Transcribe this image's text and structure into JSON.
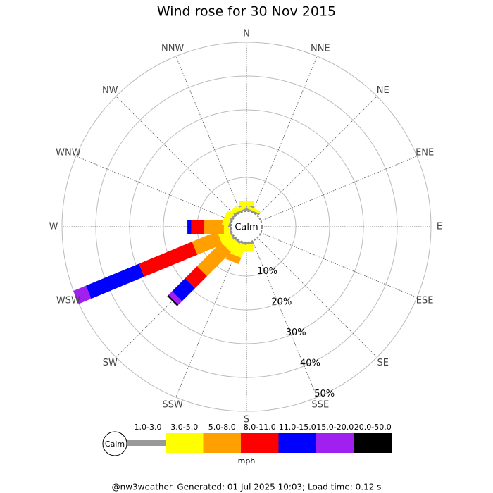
{
  "chart_data": {
    "type": "wind_rose",
    "title": "Wind rose for 30 Nov 2015",
    "directions": [
      "N",
      "NNE",
      "NE",
      "ENE",
      "E",
      "ESE",
      "SE",
      "SSE",
      "S",
      "SSW",
      "SW",
      "WSW",
      "W",
      "WNW",
      "NW",
      "NNW"
    ],
    "calm_label": "Calm",
    "rlim": [
      0,
      50
    ],
    "rticks": [
      {
        "value": 10,
        "label": "10%"
      },
      {
        "value": 20,
        "label": "20%"
      },
      {
        "value": 30,
        "label": "30%"
      },
      {
        "value": 40,
        "label": "40%"
      },
      {
        "value": 50,
        "label": "50%"
      }
    ],
    "series": [
      {
        "name": "1.0-3.0",
        "color": "#999999",
        "values": [
          1.5,
          0.5,
          0,
          0,
          0,
          0,
          0,
          0,
          0.5,
          0.5,
          0.5,
          0.5,
          0.3,
          0.5,
          0.5,
          0.5
        ]
      },
      {
        "name": "3.0-5.0",
        "color": "#ffff00",
        "values": [
          1.5,
          0.8,
          0,
          0,
          0,
          0,
          0,
          0,
          2,
          4,
          3.5,
          3.5,
          1.8,
          2,
          1.5,
          1
        ]
      },
      {
        "name": "5.0-8.0",
        "color": "#ff9f00",
        "values": [
          0,
          0,
          0,
          0,
          0,
          0,
          0,
          0,
          0,
          2,
          10,
          8,
          5.8,
          0,
          0,
          0
        ]
      },
      {
        "name": "8.0-11.0",
        "color": "#ff0000",
        "values": [
          0,
          0,
          0,
          0,
          0,
          0,
          0,
          0,
          0,
          0,
          5,
          17,
          3.8,
          0,
          0,
          0
        ]
      },
      {
        "name": "11.0-15.0",
        "color": "#0000ff",
        "values": [
          0,
          0,
          0,
          0,
          0,
          0,
          0,
          0,
          0,
          0,
          5.5,
          17,
          1.2,
          0,
          0,
          0
        ]
      },
      {
        "name": "15.0-20.0",
        "color": "#a020f0",
        "values": [
          0,
          0,
          0,
          0,
          0,
          0,
          0,
          0,
          0,
          0,
          1.5,
          4,
          0,
          0,
          0,
          0
        ]
      },
      {
        "name": "20.0-50.0",
        "color": "#000000",
        "values": [
          0,
          0,
          0,
          0,
          0,
          0,
          0,
          0,
          0,
          0,
          0.5,
          0,
          0,
          0,
          0,
          0
        ]
      }
    ],
    "units": "mph",
    "footer": "@nw3weather. Generated: 01 Jul 2025 10:03; Load time: 0.12 s"
  }
}
